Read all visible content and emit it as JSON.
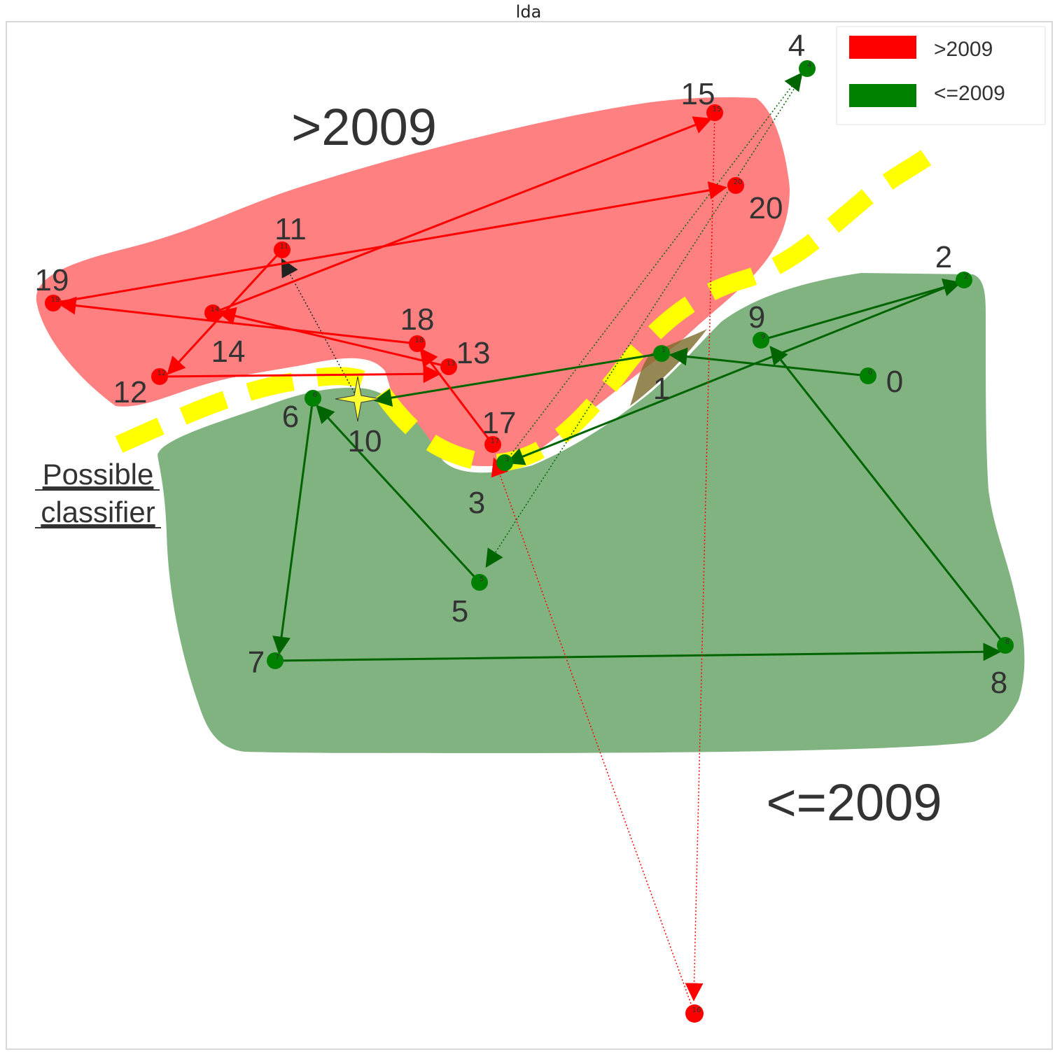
{
  "title": "lda",
  "region_labels": {
    "red": ">2009",
    "green": "<=2009"
  },
  "annotation": {
    "line1": "Possible",
    "line2": "classifier"
  },
  "legend": [
    {
      "label": ">2009",
      "color": "#ff0000"
    },
    {
      "label": "<=2009",
      "color": "#008000"
    }
  ],
  "colors": {
    "red": "#ff0000",
    "green": "#008000",
    "dark_green": "#006400",
    "red_region": "#ff8080",
    "green_region": "#80b380",
    "classifier": "#ffff00",
    "star": "#ffff33"
  },
  "nodes": [
    {
      "id": "0",
      "label": "0",
      "group": "green"
    },
    {
      "id": "1",
      "label": "1",
      "group": "green"
    },
    {
      "id": "2",
      "label": "2",
      "group": "green"
    },
    {
      "id": "3",
      "label": "3",
      "group": "green"
    },
    {
      "id": "4",
      "label": "4",
      "group": "green"
    },
    {
      "id": "5",
      "label": "5",
      "group": "green"
    },
    {
      "id": "6",
      "label": "6",
      "group": "green"
    },
    {
      "id": "7",
      "label": "7",
      "group": "green"
    },
    {
      "id": "8",
      "label": "8",
      "group": "green"
    },
    {
      "id": "9",
      "label": "9",
      "group": "green"
    },
    {
      "id": "10",
      "label": "10",
      "group": "star"
    },
    {
      "id": "11",
      "label": "11",
      "group": "red"
    },
    {
      "id": "12",
      "label": "12",
      "group": "red"
    },
    {
      "id": "13",
      "label": "13",
      "group": "red"
    },
    {
      "id": "14",
      "label": "14",
      "group": "red"
    },
    {
      "id": "15",
      "label": "15",
      "group": "red"
    },
    {
      "id": "16",
      "label": "16",
      "group": "red"
    },
    {
      "id": "17",
      "label": "17",
      "group": "red"
    },
    {
      "id": "18",
      "label": "18",
      "group": "red"
    },
    {
      "id": "19",
      "label": "19",
      "group": "red"
    },
    {
      "id": "20",
      "label": "20",
      "group": "red"
    }
  ],
  "edges": [
    {
      "from": "0",
      "to": "1",
      "color": "dark_green",
      "style": "solid"
    },
    {
      "from": "1",
      "to": "10",
      "color": "dark_green",
      "style": "solid"
    },
    {
      "from": "5",
      "to": "6",
      "color": "dark_green",
      "style": "solid"
    },
    {
      "from": "6",
      "to": "7",
      "color": "dark_green",
      "style": "solid"
    },
    {
      "from": "7",
      "to": "8",
      "color": "dark_green",
      "style": "solid"
    },
    {
      "from": "8",
      "to": "9",
      "color": "dark_green",
      "style": "solid"
    },
    {
      "from": "9",
      "to": "2",
      "color": "dark_green",
      "style": "solid"
    },
    {
      "from": "2",
      "to": "3",
      "color": "dark_green",
      "style": "solid"
    },
    {
      "from": "3",
      "to": "4",
      "color": "dark_green",
      "style": "dotted"
    },
    {
      "from": "4",
      "to": "5",
      "color": "dark_green",
      "style": "dotted"
    },
    {
      "from": "10",
      "to": "11",
      "color": "dark_gray",
      "style": "dotted"
    },
    {
      "from": "11",
      "to": "12",
      "color": "red",
      "style": "solid"
    },
    {
      "from": "12",
      "to": "13",
      "color": "red",
      "style": "solid"
    },
    {
      "from": "13",
      "to": "14",
      "color": "red",
      "style": "solid"
    },
    {
      "from": "14",
      "to": "15",
      "color": "red",
      "style": "solid"
    },
    {
      "from": "15",
      "to": "16",
      "color": "red",
      "style": "dotted"
    },
    {
      "from": "16",
      "to": "17",
      "color": "red",
      "style": "dotted"
    },
    {
      "from": "17",
      "to": "18",
      "color": "red",
      "style": "solid"
    },
    {
      "from": "18",
      "to": "19",
      "color": "red",
      "style": "solid"
    },
    {
      "from": "19",
      "to": "20",
      "color": "red",
      "style": "solid"
    }
  ]
}
